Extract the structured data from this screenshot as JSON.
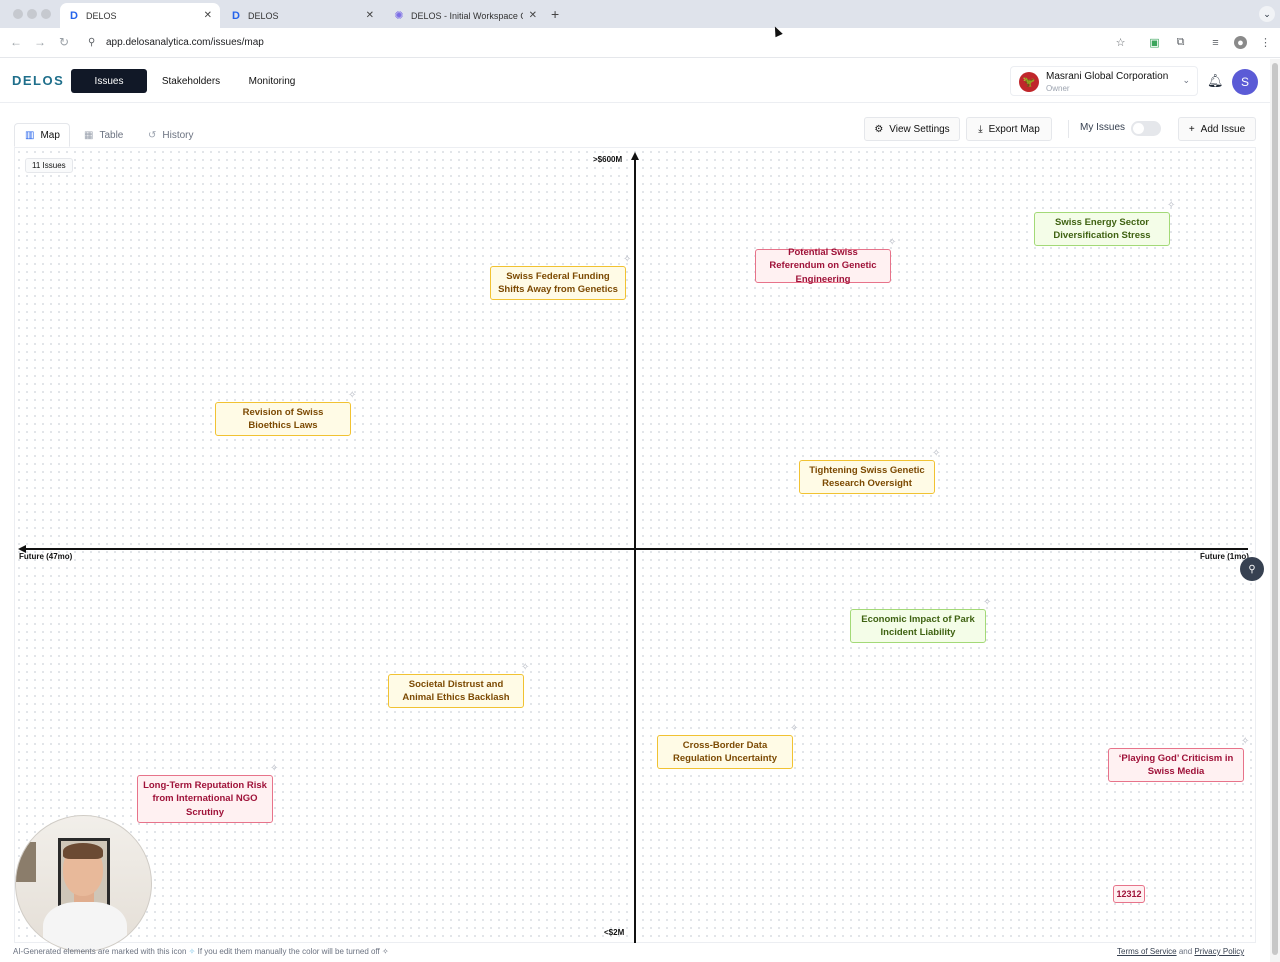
{
  "browser": {
    "tabs": [
      {
        "label": "DELOS",
        "favicon": "D"
      },
      {
        "label": "DELOS",
        "favicon": "D"
      },
      {
        "label": "DELOS - Initial Workspace O...",
        "favicon": "gear"
      }
    ],
    "url": "app.delosanalytica.com/issues/map"
  },
  "header": {
    "logo": "DELOS",
    "nav": [
      "Issues",
      "Stakeholders",
      "Monitoring"
    ],
    "org_name": "Masrani Global Corporation",
    "org_role": "Owner",
    "avatar_initial": "S"
  },
  "view_tabs": [
    "Map",
    "Table",
    "History"
  ],
  "toolbar": {
    "view_settings": "View Settings",
    "export_map": "Export Map",
    "my_issues": "My Issues",
    "add_issue": "Add Issue"
  },
  "map": {
    "issue_count": "11 Issues",
    "y_top": ">$600M",
    "y_bottom": "<$2M",
    "x_left": "Future (47mo)",
    "x_right": "Future (1mo)",
    "issues": [
      {
        "title": "Swiss Energy Sector Diversification Stress",
        "color": "green"
      },
      {
        "title": "Potential Swiss Referendum on Genetic Engineering",
        "color": "red"
      },
      {
        "title": "Swiss Federal Funding Shifts Away from Genetics",
        "color": "yellow"
      },
      {
        "title": "Revision of Swiss Bioethics Laws",
        "color": "yellow"
      },
      {
        "title": "Tightening Swiss Genetic Research Oversight",
        "color": "yellow"
      },
      {
        "title": "Economic Impact of Park Incident Liability",
        "color": "green"
      },
      {
        "title": "Societal Distrust and Animal Ethics Backlash",
        "color": "yellow"
      },
      {
        "title": "Cross-Border Data Regulation Uncertainty",
        "color": "yellow"
      },
      {
        "title": "‘Playing God’ Criticism in Swiss Media",
        "color": "red"
      },
      {
        "title": "Long-Term Reputation Risk from International NGO Scrutiny",
        "color": "red"
      },
      {
        "title": "12312",
        "color": "red"
      }
    ]
  },
  "footer": {
    "note_part1": "AI-Generated elements are marked with this icon",
    "note_part2": "If you edit them manually the color will be turned off",
    "terms": "Terms of Service",
    "and": "and",
    "privacy": "Privacy Policy"
  },
  "colors": {
    "accent": "#111827",
    "logo": "#1f6f8b",
    "yellow_border": "#f1c232",
    "red_border": "#e7738a",
    "green_border": "#a3d977"
  }
}
